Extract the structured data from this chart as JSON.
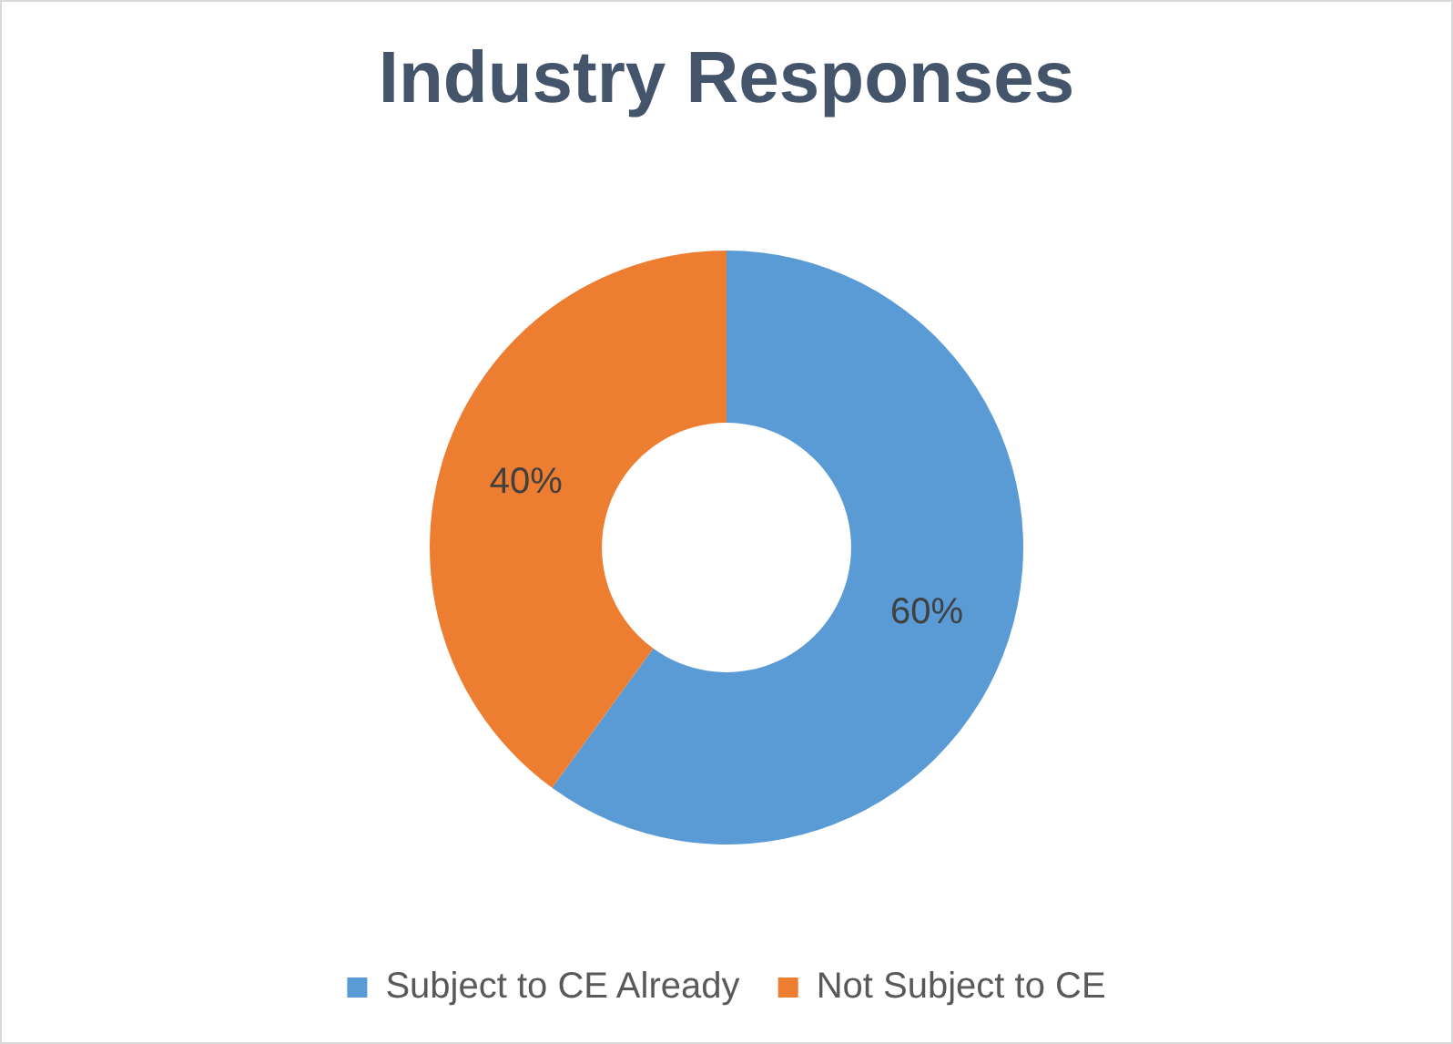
{
  "chart_data": {
    "type": "donut",
    "title": "Industry Responses",
    "categories": [
      "Subject to CE Already",
      "Not Subject to CE"
    ],
    "values": [
      60,
      40
    ],
    "colors": [
      "#5b9bd5",
      "#ed7d31"
    ],
    "value_labels": [
      "60%",
      "40%"
    ],
    "legend": "bottom"
  }
}
